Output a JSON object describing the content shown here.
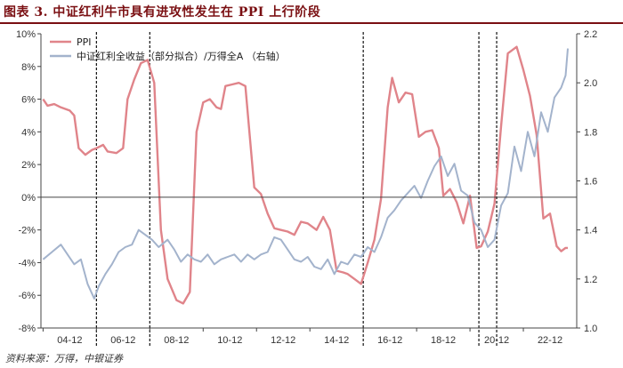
{
  "title": "图表 3. 中证红利牛市具有进攻性发生在 PPI 上行阶段",
  "source": "资料来源：万得，中银证券",
  "colors": {
    "ppi": "#e0848a",
    "index": "#a3b3cc",
    "axis": "#444444",
    "title": "#7a0f12"
  },
  "chart_data": {
    "type": "line",
    "title": "图表 3. 中证红利牛市具有进攻性发生在 PPI 上行阶段",
    "xlabel": "",
    "x_ticks": [
      "04-12",
      "06-12",
      "08-12",
      "10-12",
      "12-12",
      "14-12",
      "16-12",
      "18-12",
      "20-12",
      "22-12"
    ],
    "y_left": {
      "label": "",
      "ylim": [
        -8,
        10
      ],
      "ticks": [
        "-8%",
        "-6%",
        "-4%",
        "-2%",
        "0%",
        "2%",
        "4%",
        "6%",
        "8%",
        "10%"
      ]
    },
    "y_right": {
      "label": "",
      "ylim": [
        1.0,
        2.2
      ],
      "ticks": [
        "1.0",
        "1.2",
        "1.4",
        "1.6",
        "1.8",
        "2.0",
        "2.2"
      ]
    },
    "legend": {
      "placement": "top-left"
    },
    "grid": false,
    "vlines": [
      "2006-01",
      "2008-01",
      "2016-01",
      "2020-05",
      "2021-01"
    ],
    "series": [
      {
        "name": "PPI",
        "axis": "left",
        "color": "#e0848a",
        "points": [
          [
            "2004-01",
            6.0
          ],
          [
            "2004-03",
            5.6
          ],
          [
            "2004-06",
            5.7
          ],
          [
            "2004-09",
            5.5
          ],
          [
            "2005-01",
            5.3
          ],
          [
            "2005-03",
            5.0
          ],
          [
            "2005-05",
            3.0
          ],
          [
            "2005-08",
            2.6
          ],
          [
            "2005-11",
            2.9
          ],
          [
            "2006-01",
            3.0
          ],
          [
            "2006-04",
            3.2
          ],
          [
            "2006-06",
            2.8
          ],
          [
            "2006-10",
            2.7
          ],
          [
            "2007-01",
            3.0
          ],
          [
            "2007-03",
            6.0
          ],
          [
            "2007-06",
            7.2
          ],
          [
            "2007-09",
            8.2
          ],
          [
            "2007-12",
            8.4
          ],
          [
            "2008-03",
            7.0
          ],
          [
            "2008-06",
            -2.0
          ],
          [
            "2008-09",
            -5.0
          ],
          [
            "2009-01",
            -6.3
          ],
          [
            "2009-04",
            -6.5
          ],
          [
            "2009-07",
            -5.8
          ],
          [
            "2009-10",
            4.0
          ],
          [
            "2010-01",
            5.8
          ],
          [
            "2010-04",
            6.0
          ],
          [
            "2010-07",
            5.5
          ],
          [
            "2010-09",
            5.4
          ],
          [
            "2010-11",
            6.8
          ],
          [
            "2011-02",
            6.9
          ],
          [
            "2011-05",
            7.0
          ],
          [
            "2011-08",
            6.8
          ],
          [
            "2011-12",
            0.6
          ],
          [
            "2012-03",
            0.2
          ],
          [
            "2012-06",
            -1.0
          ],
          [
            "2012-09",
            -1.9
          ],
          [
            "2012-12",
            -2.0
          ],
          [
            "2013-03",
            -2.1
          ],
          [
            "2013-06",
            -2.3
          ],
          [
            "2013-09",
            -1.5
          ],
          [
            "2013-12",
            -1.6
          ],
          [
            "2014-04",
            -2.0
          ],
          [
            "2014-07",
            -1.2
          ],
          [
            "2014-10",
            -2.0
          ],
          [
            "2015-01",
            -4.5
          ],
          [
            "2015-04",
            -4.6
          ],
          [
            "2015-06",
            -4.7
          ],
          [
            "2015-09",
            -5.0
          ],
          [
            "2015-12",
            -5.3
          ],
          [
            "2016-03",
            -4.0
          ],
          [
            "2016-06",
            -2.6
          ],
          [
            "2016-09",
            -0.1
          ],
          [
            "2016-12",
            5.5
          ],
          [
            "2017-02",
            7.3
          ],
          [
            "2017-05",
            5.8
          ],
          [
            "2017-08",
            6.4
          ],
          [
            "2017-11",
            6.3
          ],
          [
            "2018-02",
            3.7
          ],
          [
            "2018-05",
            4.0
          ],
          [
            "2018-08",
            4.1
          ],
          [
            "2018-11",
            3.0
          ],
          [
            "2019-01",
            0.1
          ],
          [
            "2019-04",
            0.5
          ],
          [
            "2019-07",
            -0.3
          ],
          [
            "2019-10",
            -1.6
          ],
          [
            "2020-01",
            0.1
          ],
          [
            "2020-04",
            -3.1
          ],
          [
            "2020-06",
            -3.0
          ],
          [
            "2020-09",
            -2.1
          ],
          [
            "2020-12",
            -0.4
          ],
          [
            "2021-03",
            4.4
          ],
          [
            "2021-06",
            8.8
          ],
          [
            "2021-10",
            9.2
          ],
          [
            "2022-01",
            7.8
          ],
          [
            "2022-04",
            6.2
          ],
          [
            "2022-07",
            3.8
          ],
          [
            "2022-10",
            -1.3
          ],
          [
            "2023-01",
            -1.0
          ],
          [
            "2023-04",
            -3.0
          ],
          [
            "2023-06",
            -3.3
          ],
          [
            "2023-08",
            -3.1
          ],
          [
            "2023-09",
            -3.1
          ]
        ]
      },
      {
        "name": "中证红利全收益（部分拟合）/万得全A （右轴）",
        "axis": "right",
        "color": "#a3b3cc",
        "points": [
          [
            "2004-01",
            1.28
          ],
          [
            "2004-05",
            1.31
          ],
          [
            "2004-09",
            1.34
          ],
          [
            "2004-12",
            1.3
          ],
          [
            "2005-03",
            1.26
          ],
          [
            "2005-06",
            1.28
          ],
          [
            "2005-09",
            1.18
          ],
          [
            "2005-12",
            1.12
          ],
          [
            "2006-02",
            1.17
          ],
          [
            "2006-05",
            1.22
          ],
          [
            "2006-08",
            1.26
          ],
          [
            "2006-11",
            1.31
          ],
          [
            "2007-02",
            1.33
          ],
          [
            "2007-05",
            1.34
          ],
          [
            "2007-08",
            1.4
          ],
          [
            "2007-11",
            1.38
          ],
          [
            "2008-02",
            1.36
          ],
          [
            "2008-05",
            1.33
          ],
          [
            "2008-09",
            1.36
          ],
          [
            "2008-12",
            1.32
          ],
          [
            "2009-03",
            1.27
          ],
          [
            "2009-06",
            1.3
          ],
          [
            "2009-09",
            1.28
          ],
          [
            "2009-12",
            1.27
          ],
          [
            "2010-03",
            1.3
          ],
          [
            "2010-06",
            1.26
          ],
          [
            "2010-09",
            1.28
          ],
          [
            "2010-12",
            1.29
          ],
          [
            "2011-03",
            1.3
          ],
          [
            "2011-06",
            1.27
          ],
          [
            "2011-09",
            1.3
          ],
          [
            "2011-12",
            1.28
          ],
          [
            "2012-03",
            1.3
          ],
          [
            "2012-06",
            1.31
          ],
          [
            "2012-09",
            1.37
          ],
          [
            "2012-12",
            1.36
          ],
          [
            "2013-03",
            1.32
          ],
          [
            "2013-06",
            1.28
          ],
          [
            "2013-09",
            1.27
          ],
          [
            "2013-12",
            1.29
          ],
          [
            "2014-03",
            1.25
          ],
          [
            "2014-06",
            1.24
          ],
          [
            "2014-09",
            1.28
          ],
          [
            "2014-12",
            1.22
          ],
          [
            "2015-03",
            1.27
          ],
          [
            "2015-06",
            1.26
          ],
          [
            "2015-09",
            1.3
          ],
          [
            "2015-12",
            1.29
          ],
          [
            "2016-03",
            1.33
          ],
          [
            "2016-06",
            1.31
          ],
          [
            "2016-09",
            1.37
          ],
          [
            "2016-12",
            1.45
          ],
          [
            "2017-03",
            1.48
          ],
          [
            "2017-06",
            1.52
          ],
          [
            "2017-09",
            1.55
          ],
          [
            "2017-12",
            1.58
          ],
          [
            "2018-03",
            1.53
          ],
          [
            "2018-06",
            1.6
          ],
          [
            "2018-09",
            1.66
          ],
          [
            "2018-12",
            1.7
          ],
          [
            "2019-03",
            1.62
          ],
          [
            "2019-06",
            1.67
          ],
          [
            "2019-09",
            1.56
          ],
          [
            "2019-12",
            1.54
          ],
          [
            "2020-03",
            1.43
          ],
          [
            "2020-06",
            1.4
          ],
          [
            "2020-09",
            1.33
          ],
          [
            "2020-12",
            1.36
          ],
          [
            "2021-03",
            1.5
          ],
          [
            "2021-06",
            1.55
          ],
          [
            "2021-09",
            1.74
          ],
          [
            "2021-12",
            1.64
          ],
          [
            "2022-03",
            1.8
          ],
          [
            "2022-06",
            1.7
          ],
          [
            "2022-09",
            1.88
          ],
          [
            "2022-12",
            1.8
          ],
          [
            "2023-03",
            1.94
          ],
          [
            "2023-06",
            1.98
          ],
          [
            "2023-08",
            2.03
          ],
          [
            "2023-09",
            2.14
          ]
        ]
      }
    ]
  }
}
